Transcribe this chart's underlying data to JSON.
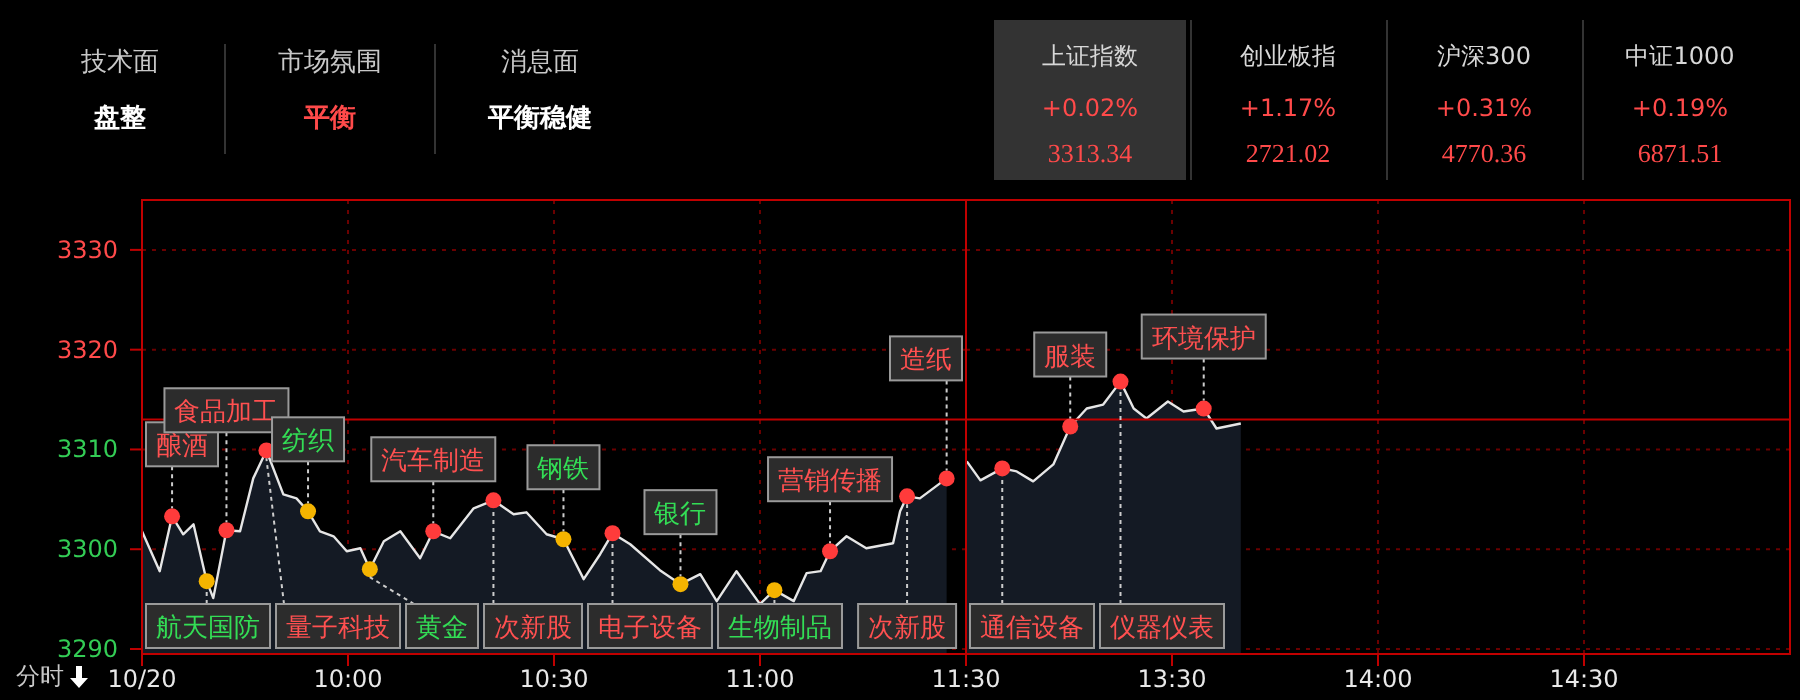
{
  "chart_data": [
    {
      "type": "area",
      "xlim": [
        9.5,
        11.5
      ],
      "ylim": [
        3289.5,
        3335
      ],
      "xticks": [
        {
          "value": 9.5,
          "label": "10/20"
        },
        {
          "value": 10,
          "label": "10:00"
        },
        {
          "value": 10.5,
          "label": "10:30"
        },
        {
          "value": 11,
          "label": "11:00"
        },
        {
          "value": 11.5,
          "label": "11:30"
        }
      ],
      "yticks": [
        3290,
        3300,
        3310,
        3320,
        3330
      ],
      "grid": true,
      "legend": false,
      "ref_lines": [
        {
          "axis": "y",
          "value": 3313,
          "color": "#c00000"
        }
      ],
      "series": [
        {
          "color": "#e6e6e6",
          "x": [
            9.5,
            9.543,
            9.573,
            9.6,
            9.625,
            9.657,
            9.673,
            9.705,
            9.738,
            9.77,
            9.802,
            9.843,
            9.875,
            9.903,
            9.932,
            9.965,
            9.997,
            10.03,
            10.053,
            10.087,
            10.127,
            10.175,
            10.207,
            10.248,
            10.305,
            10.353,
            10.402,
            10.433,
            10.482,
            10.523,
            10.572,
            10.612,
            10.642,
            10.685,
            10.757,
            10.807,
            10.855,
            10.895,
            10.943,
            11,
            11.035,
            11.082,
            11.113,
            11.147,
            11.17,
            11.21,
            11.258,
            11.323,
            11.34,
            11.357,
            11.388,
            11.453
          ],
          "values": [
            3301.8,
            3297.8,
            3303.3,
            3301.5,
            3302.5,
            3296.8,
            3295.1,
            3301.9,
            3301.8,
            3307.1,
            3309.9,
            3305.5,
            3305.1,
            3303.8,
            3301.8,
            3301.3,
            3299.8,
            3300.1,
            3298,
            3300.8,
            3301.8,
            3299.1,
            3301.8,
            3301.1,
            3304.1,
            3304.9,
            3303.5,
            3303.7,
            3301.5,
            3301,
            3297,
            3299.5,
            3301.6,
            3300.5,
            3297.9,
            3296.5,
            3297.5,
            3294.8,
            3297.8,
            3294.5,
            3295.9,
            3294.8,
            3297.6,
            3297.8,
            3299.8,
            3301.3,
            3300.1,
            3300.6,
            3303.8,
            3305.3,
            3305.1,
            3307.1
          ]
        },
        {
          "type": "scatter",
          "marker": "circle",
          "color": "#ff3b3b",
          "x": [
            9.573,
            9.705,
            9.802,
            10.207,
            10.353,
            10.642,
            11.17,
            11.357,
            11.453
          ],
          "values": [
            3303.3,
            3301.9,
            3309.9,
            3301.8,
            3304.9,
            3301.6,
            3299.8,
            3305.3,
            3307.1
          ]
        },
        {
          "type": "scatter",
          "marker": "circle",
          "color": "#f5b400",
          "x": [
            9.657,
            9.903,
            10.053,
            10.523,
            10.807,
            11.035
          ],
          "values": [
            3296.8,
            3303.8,
            3298,
            3301,
            3296.5,
            3295.9
          ]
        }
      ],
      "annotations": [
        "技术面",
        "盘整",
        "市场氛围",
        "平衡",
        "消息面",
        "平衡稳健",
        "上证指数",
        "+0.02%",
        "3313.34",
        "创业板指",
        "+1.17%",
        "2721.02",
        "沪深300",
        "+0.31%",
        "4770.36",
        "中证1000",
        "+0.19%",
        "6871.51",
        "分时",
        {
          "text": "酿酒",
          "x": 9.573,
          "y": 3303.3
        },
        {
          "text": "航天国防",
          "x": 9.657,
          "y": 3296.8
        },
        {
          "text": "食品加工",
          "x": 9.705,
          "y": 3301.9
        },
        {
          "text": "量子科技",
          "x": 9.802,
          "y": 3309.9
        },
        {
          "text": "纺织",
          "x": 9.903,
          "y": 3303.8
        },
        {
          "text": "黄金",
          "x": 10.053,
          "y": 3298
        },
        {
          "text": "汽车制造",
          "x": 10.207,
          "y": 3301.8
        },
        {
          "text": "次新股",
          "x": 10.353,
          "y": 3304.9
        },
        {
          "text": "钢铁",
          "x": 10.523,
          "y": 3301
        },
        {
          "text": "电子设备",
          "x": 10.642,
          "y": 3301.6
        },
        {
          "text": "银行",
          "x": 10.807,
          "y": 3296.5
        },
        {
          "text": "生物制品",
          "x": 11.035,
          "y": 3295.9
        },
        {
          "text": "营销传播",
          "x": 11.17,
          "y": 3299.8
        },
        {
          "text": "次新股",
          "x": 11.357,
          "y": 3305.3
        },
        {
          "text": "造纸",
          "x": 11.453,
          "y": 3307.1
        }
      ]
    },
    {
      "type": "area",
      "xlim": [
        13,
        15
      ],
      "ylim": [
        3289.5,
        3335
      ],
      "xticks": [
        {
          "value": 13.5,
          "label": "13:30"
        },
        {
          "value": 14,
          "label": "14:00"
        },
        {
          "value": 14.5,
          "label": "14:30"
        }
      ],
      "yticks": [
        3290,
        3300,
        3310,
        3320,
        3330
      ],
      "tick_labels": "x",
      "grid": true,
      "legend": false,
      "ref_lines": [
        {
          "axis": "y",
          "value": 3313,
          "color": "#c00000"
        }
      ],
      "series": [
        {
          "color": "#e6e6e6",
          "x": [
            13.002,
            13.035,
            13.088,
            13.123,
            13.163,
            13.212,
            13.253,
            13.293,
            13.333,
            13.375,
            13.407,
            13.438,
            13.49,
            13.528,
            13.577,
            13.608,
            13.667
          ],
          "values": [
            3308.8,
            3306.9,
            3308.1,
            3307.8,
            3306.8,
            3308.5,
            3312.3,
            3314.1,
            3314.5,
            3316.8,
            3314.1,
            3313.1,
            3314.8,
            3313.8,
            3314.1,
            3312.1,
            3312.6
          ]
        },
        {
          "type": "scatter",
          "marker": "circle",
          "color": "#ff3b3b",
          "x": [
            13.088,
            13.253,
            13.375,
            13.577
          ],
          "values": [
            3308.1,
            3312.3,
            3316.8,
            3314.1
          ]
        }
      ],
      "annotations": [
        {
          "text": "通信设备",
          "x": 13.088,
          "y": 3308.1
        },
        {
          "text": "服装",
          "x": 13.253,
          "y": 3312.3
        },
        {
          "text": "仪器仪表",
          "x": 13.375,
          "y": 3316.8
        },
        {
          "text": "环境保护",
          "x": 13.577,
          "y": 3314.1
        }
      ]
    }
  ]
}
